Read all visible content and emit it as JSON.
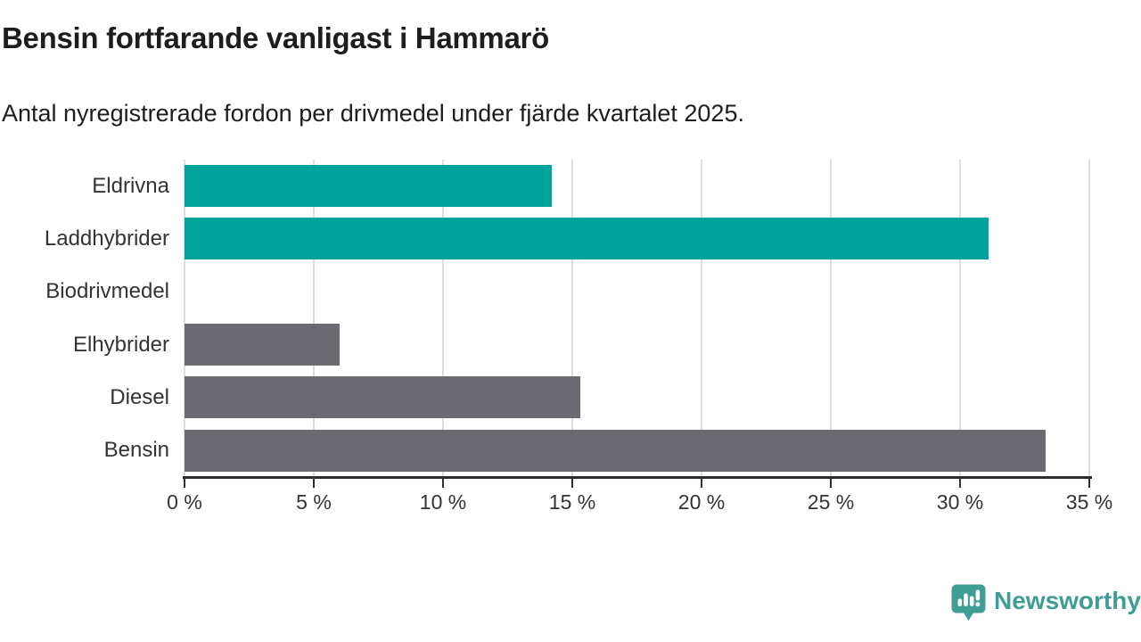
{
  "header": {
    "title": "Bensin fortfarande vanligast i Hammarö",
    "subtitle": "Antal nyregistrerade fordon per drivmedel under fjärde kvartalet 2025."
  },
  "chart_data": {
    "type": "bar",
    "orientation": "horizontal",
    "title": "Bensin fortfarande vanligast i Hammarö",
    "subtitle": "Antal nyregistrerade fordon per drivmedel under fjärde kvartalet 2025.",
    "categories": [
      "Eldrivna",
      "Laddhybrider",
      "Biodrivmedel",
      "Elhybrider",
      "Diesel",
      "Bensin"
    ],
    "values": [
      14.2,
      31.1,
      0,
      6.0,
      15.3,
      33.3
    ],
    "unit": "%",
    "xlim": [
      0,
      35
    ],
    "x_tick_values": [
      0,
      5,
      10,
      15,
      20,
      25,
      30,
      35
    ],
    "x_tick_labels": [
      "0 %",
      "5 %",
      "10 %",
      "15 %",
      "20 %",
      "25 %",
      "30 %",
      "35 %"
    ],
    "point_colors": [
      "#00a49c",
      "#00a49c",
      "#6a6a70",
      "#6a6a70",
      "#6a6a70",
      "#6a6a70"
    ],
    "grid": true,
    "legend": false,
    "xlabel": "",
    "ylabel": ""
  },
  "colors": {
    "bar_teal": "#00a49c",
    "bar_gray": "#6a6a70",
    "axis": "#2e2e2e",
    "gridline": "#dddddd",
    "brand_teal": "#3f9d96",
    "text_dark": "#1d1d1b"
  },
  "footer": {
    "brand": "Newsworthy"
  }
}
